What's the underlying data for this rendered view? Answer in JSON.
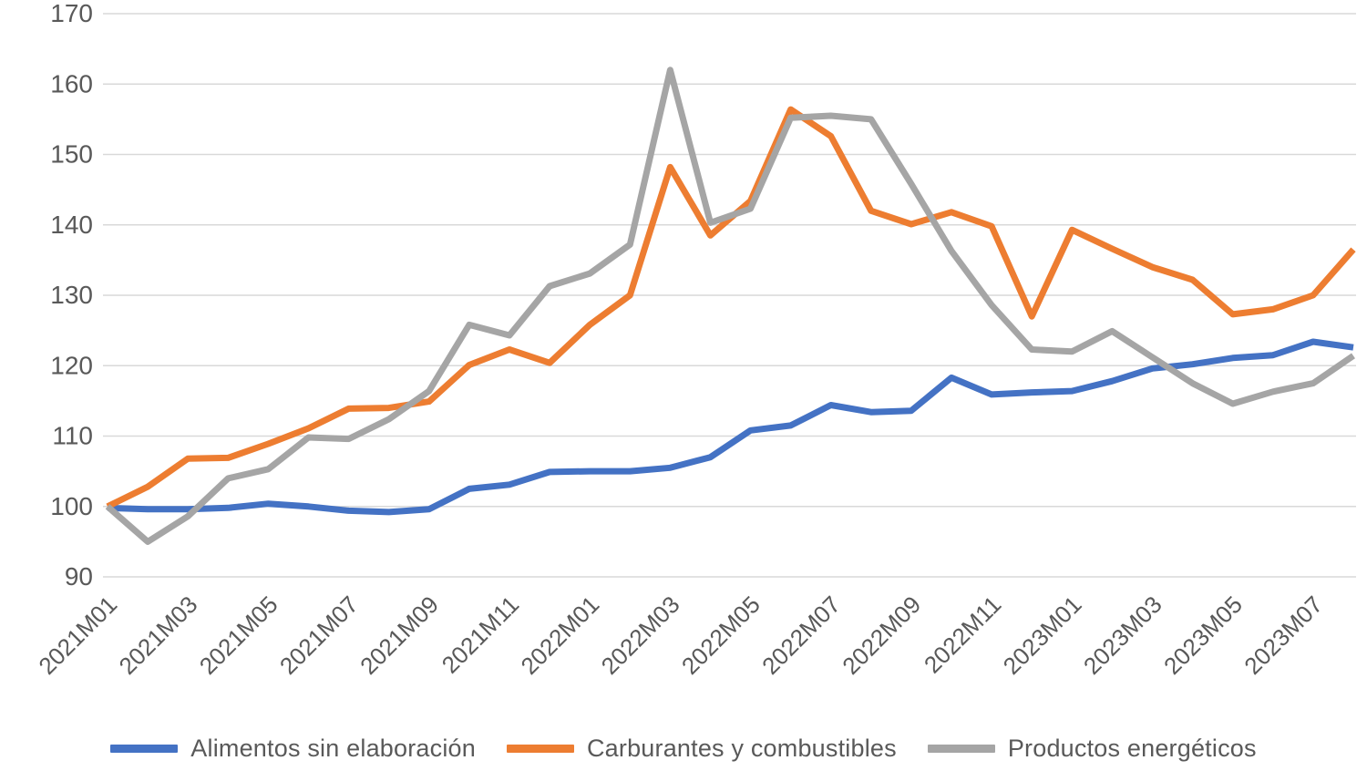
{
  "chart_data": {
    "type": "line",
    "title": "",
    "xlabel": "",
    "ylabel": "",
    "ylim": [
      90,
      170
    ],
    "yticks": [
      90,
      100,
      110,
      120,
      130,
      140,
      150,
      160,
      170
    ],
    "x_tick_step": 2,
    "grid": "horizontal",
    "legend_position": "bottom",
    "categories": [
      "2021M01",
      "2021M02",
      "2021M03",
      "2021M04",
      "2021M05",
      "2021M06",
      "2021M07",
      "2021M08",
      "2021M09",
      "2021M10",
      "2021M11",
      "2021M12",
      "2022M01",
      "2022M02",
      "2022M03",
      "2022M04",
      "2022M05",
      "2022M06",
      "2022M07",
      "2022M08",
      "2022M09",
      "2022M10",
      "2022M11",
      "2022M12",
      "2023M01",
      "2023M02",
      "2023M03",
      "2023M04",
      "2023M05",
      "2023M06",
      "2023M07",
      "2023M08"
    ],
    "series": [
      {
        "name": "Alimentos sin elaboración",
        "color": "#4472C4",
        "values": [
          99.8,
          99.6,
          99.6,
          99.8,
          100.4,
          100.0,
          99.4,
          99.2,
          99.6,
          102.5,
          103.1,
          104.9,
          105.0,
          105.0,
          105.5,
          107.0,
          110.8,
          111.5,
          114.4,
          113.4,
          113.6,
          118.3,
          115.9,
          116.2,
          116.4,
          117.8,
          119.6,
          120.2,
          121.1,
          121.5,
          123.4,
          122.6
        ]
      },
      {
        "name": "Carburantes y combustibles",
        "color": "#ED7D31",
        "values": [
          100.0,
          102.8,
          106.8,
          106.9,
          108.9,
          111.1,
          113.9,
          114.0,
          114.9,
          120.1,
          122.3,
          120.4,
          125.8,
          130.0,
          148.2,
          138.5,
          143.4,
          156.4,
          152.6,
          142.0,
          140.1,
          141.8,
          139.8,
          127.0,
          139.3,
          136.6,
          134.0,
          132.2,
          127.3,
          128.0,
          130.0,
          136.5
        ]
      },
      {
        "name": "Productos energéticos",
        "color": "#A5A5A5",
        "values": [
          100.0,
          95.0,
          98.6,
          104.0,
          105.3,
          109.8,
          109.6,
          112.4,
          116.4,
          125.8,
          124.3,
          131.3,
          133.1,
          137.2,
          162.0,
          140.3,
          142.3,
          155.2,
          155.5,
          155.0,
          145.8,
          136.3,
          128.6,
          122.3,
          122.0,
          124.9,
          121.2,
          117.5,
          114.6,
          116.3,
          117.5,
          121.4
        ]
      }
    ],
    "axis_text_color": "#595959",
    "gridline_color": "#D9D9D9",
    "background_color": "#FFFFFF"
  }
}
